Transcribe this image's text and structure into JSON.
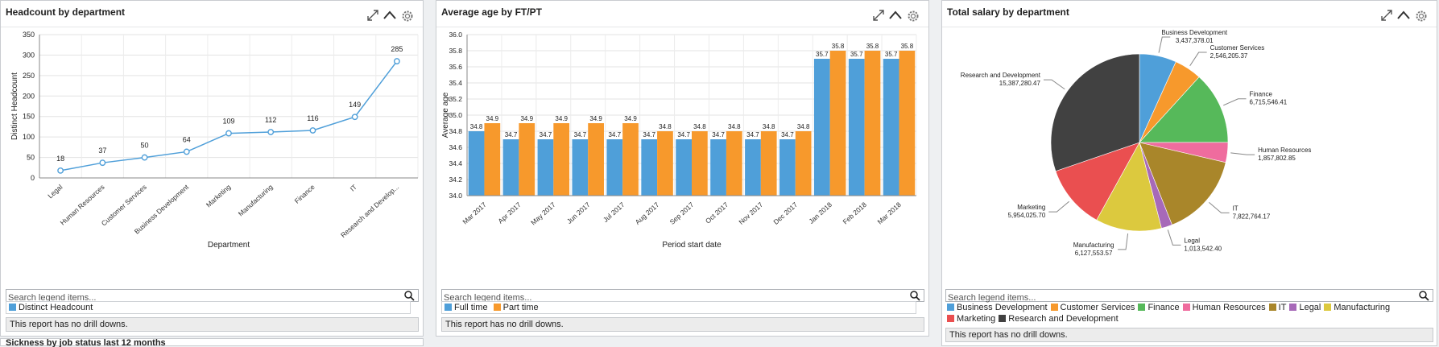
{
  "panels": {
    "headcount": {
      "title": "Headcount by department",
      "search_placeholder": "Search legend items...",
      "legend": [
        {
          "label": "Distinct Headcount",
          "color": "#4f9fd9"
        }
      ],
      "no_drill": "This report has no drill downs."
    },
    "avgage": {
      "title": "Average age by FT/PT",
      "search_placeholder": "Search legend items...",
      "legend": [
        {
          "label": "Full time",
          "color": "#4f9fd9"
        },
        {
          "label": "Part time",
          "color": "#f7992c"
        }
      ],
      "no_drill": "This report has no drill downs."
    },
    "salary": {
      "title": "Total salary by department",
      "search_placeholder": "Search legend items...",
      "legend": [
        {
          "label": "Business Development",
          "color": "#4f9fd9"
        },
        {
          "label": "Customer Services",
          "color": "#f7992c"
        },
        {
          "label": "Finance",
          "color": "#56b95a"
        },
        {
          "label": "Human Resources",
          "color": "#ef6c9e"
        },
        {
          "label": "IT",
          "color": "#a9862a"
        },
        {
          "label": "Legal",
          "color": "#a769b8"
        },
        {
          "label": "Manufacturing",
          "color": "#dcc93e"
        },
        {
          "label": "Marketing",
          "color": "#ea4f50"
        },
        {
          "label": "Research and Development",
          "color": "#414141"
        }
      ],
      "no_drill": "This report has no drill downs."
    },
    "bottom": {
      "title": "Sickness by job status last 12 months"
    }
  },
  "chart_data": [
    {
      "type": "line",
      "title": "Headcount by department",
      "xlabel": "Department",
      "ylabel": "Distinct Headcount",
      "ylim": [
        0,
        350
      ],
      "yticks": [
        0,
        50,
        100,
        150,
        200,
        250,
        300,
        350
      ],
      "categories": [
        "Legal",
        "Human Resources",
        "Customer Services",
        "Business Development",
        "Marketing",
        "Manufacturing",
        "Finance",
        "IT",
        "Research and Develop..."
      ],
      "series": [
        {
          "name": "Distinct Headcount",
          "values": [
            18,
            37,
            50,
            64,
            109,
            112,
            116,
            149,
            285
          ]
        }
      ],
      "grid": true
    },
    {
      "type": "bar",
      "title": "Average age by FT/PT",
      "xlabel": "Period start date",
      "ylabel": "Average age",
      "ylim": [
        34.0,
        36.0
      ],
      "yticks": [
        "34.0",
        "34.2",
        "34.4",
        "34.6",
        "34.8",
        "35.0",
        "35.2",
        "35.4",
        "35.6",
        "35.8",
        "36.0"
      ],
      "categories": [
        "Mar 2017",
        "Apr 2017",
        "May 2017",
        "Jun 2017",
        "Jul 2017",
        "Aug 2017",
        "Sep 2017",
        "Oct 2017",
        "Nov 2017",
        "Dec 2017",
        "Jan 2018",
        "Feb 2018",
        "Mar 2018"
      ],
      "series": [
        {
          "name": "Full time",
          "values": [
            34.8,
            34.7,
            34.7,
            34.7,
            34.7,
            34.7,
            34.7,
            34.7,
            34.7,
            34.7,
            35.7,
            35.7,
            35.7
          ]
        },
        {
          "name": "Part time",
          "values": [
            34.9,
            34.9,
            34.9,
            34.9,
            34.9,
            34.8,
            34.8,
            34.8,
            34.8,
            34.8,
            35.8,
            35.8,
            35.8
          ]
        }
      ],
      "grid": true
    },
    {
      "type": "pie",
      "title": "Total salary by department",
      "labels": [
        "Business Development",
        "Customer Services",
        "Finance",
        "Human Resources",
        "IT",
        "Legal",
        "Manufacturing",
        "Marketing",
        "Research and Development"
      ],
      "value_labels": [
        "3,437,378.01",
        "2,546,205.37",
        "6,715,546.41",
        "1,857,802.85",
        "7,822,764.17",
        "1,013,542.40",
        "6,127,553.57",
        "5,954,025.70",
        "15,387,280.47"
      ],
      "values": [
        3437378.01,
        2546205.37,
        6715546.41,
        1857802.85,
        7822764.17,
        1013542.4,
        6127553.57,
        5954025.7,
        15387280.47
      ]
    }
  ]
}
